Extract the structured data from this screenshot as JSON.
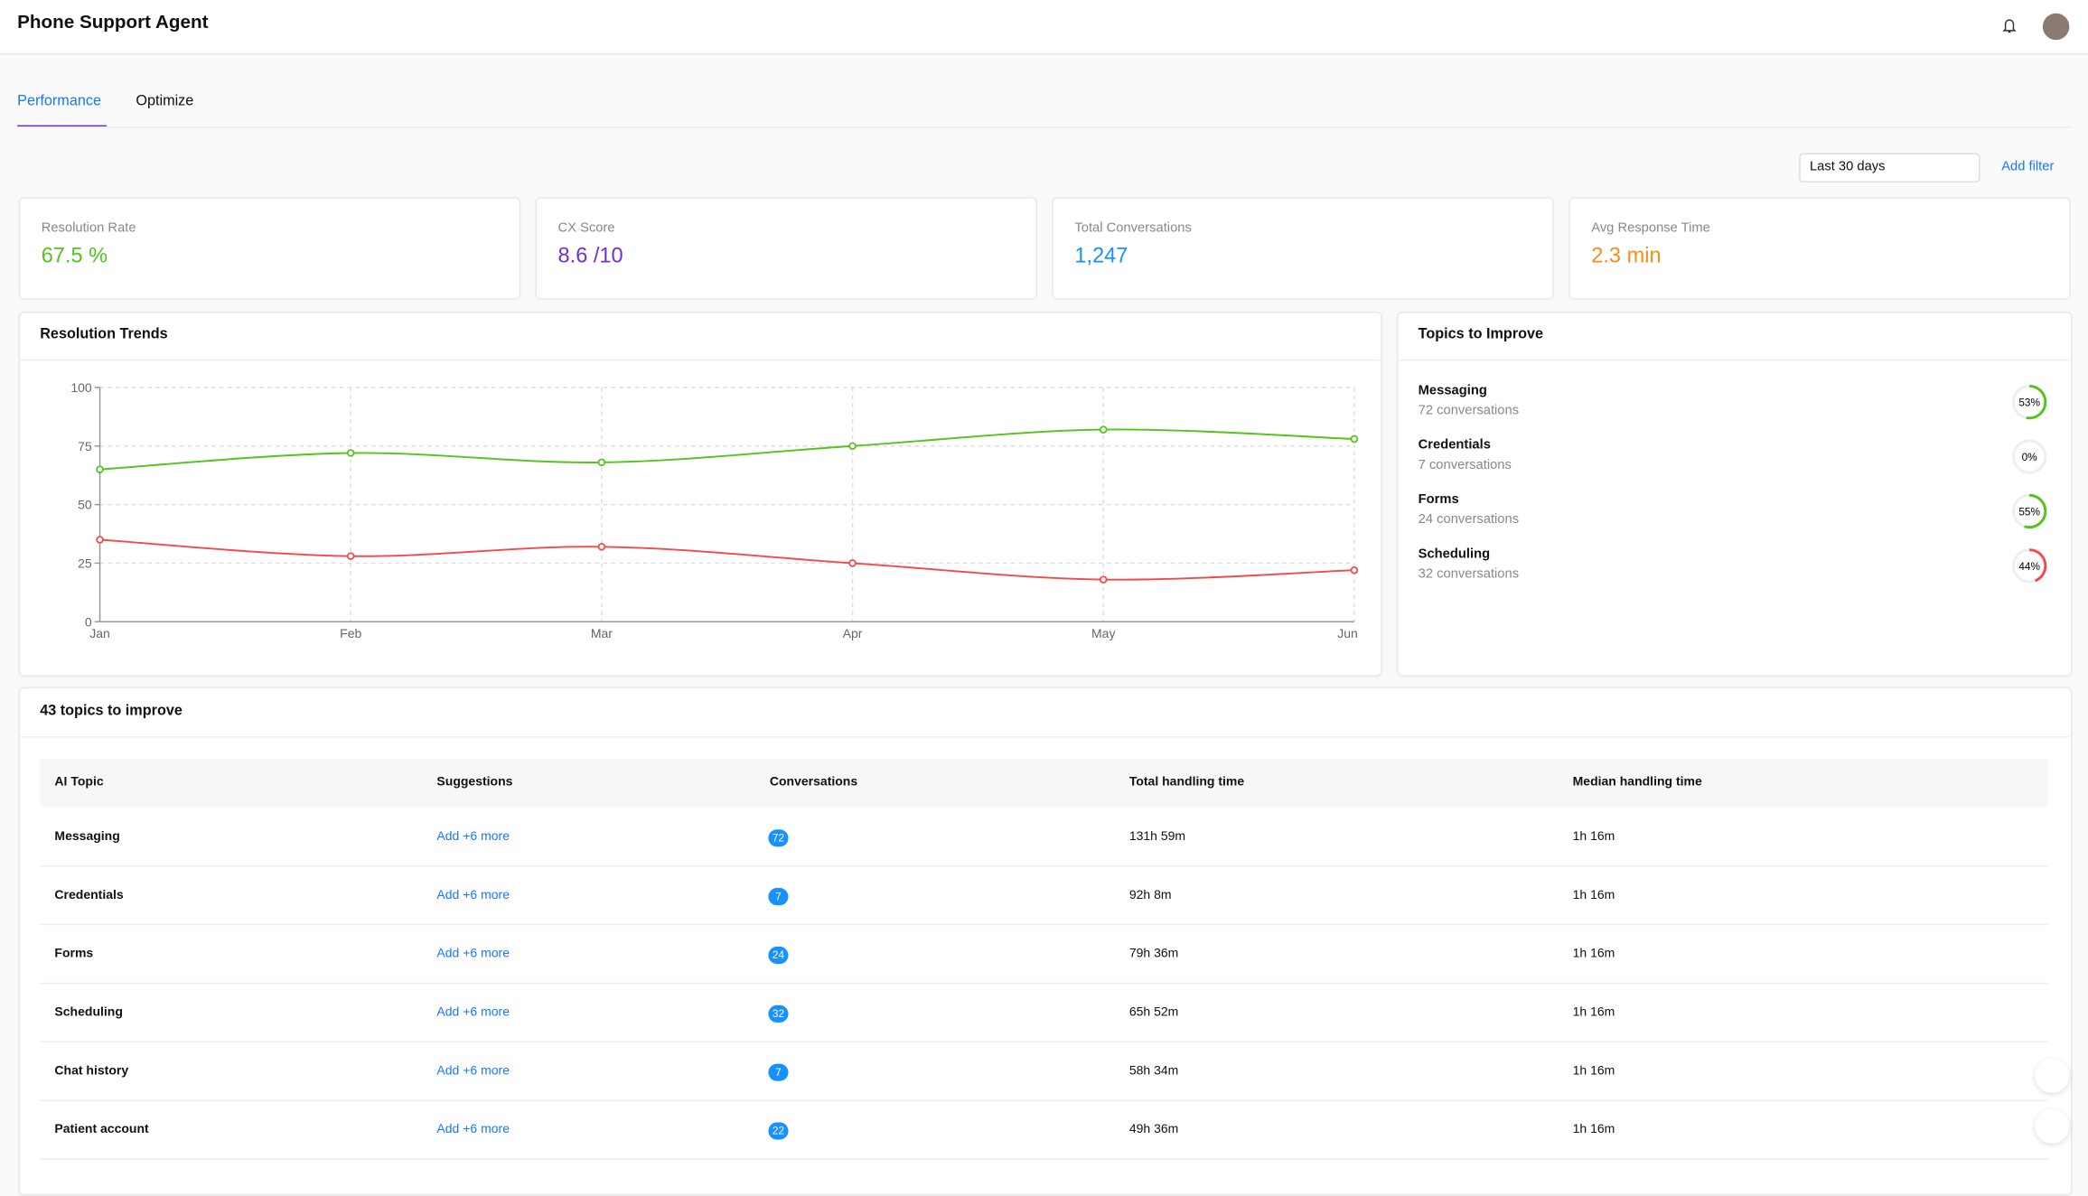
{
  "header": {
    "title": "Phone Support Agent"
  },
  "tabs": [
    "Performance",
    "Optimize"
  ],
  "filters": {
    "date_range": "Last 30 days",
    "add_filter": "Add filter"
  },
  "kpis": [
    {
      "label": "Resolution Rate",
      "value": "67.5 %",
      "color": "#52c41a"
    },
    {
      "label": "CX Score",
      "value": "8.6 /10",
      "color": "#722ed1"
    },
    {
      "label": "Total Conversations",
      "value": "1,247",
      "color": "#1890ff"
    },
    {
      "label": "Avg Response Time",
      "value": "2.3 min",
      "color": "#fa8c16"
    }
  ],
  "chart_data": {
    "type": "line",
    "title": "Resolution Trends",
    "categories": [
      "Jan",
      "Feb",
      "Mar",
      "Apr",
      "May",
      "Jun"
    ],
    "series": [
      {
        "color": "#52c41a",
        "values": [
          65,
          72,
          68,
          75,
          82,
          78
        ]
      },
      {
        "color": "#f5484a",
        "values": [
          35,
          28,
          32,
          25,
          18,
          22
        ]
      }
    ],
    "ylim": [
      0,
      100
    ],
    "yticks": [
      0,
      25,
      50,
      75,
      100
    ],
    "grid": true
  },
  "topics": {
    "title": "Topics to Improve",
    "items": [
      {
        "name": "Messaging",
        "conversations": "72 conversations",
        "percent": 53,
        "percent_label": "53%",
        "color": "#52c41a"
      },
      {
        "name": "Credentials",
        "conversations": "7 conversations",
        "percent": 0,
        "percent_label": "0%",
        "color": "#d9d9d9"
      },
      {
        "name": "Forms",
        "conversations": "24 conversations",
        "percent": 55,
        "percent_label": "55%",
        "color": "#52c41a"
      },
      {
        "name": "Scheduling",
        "conversations": "32 conversations",
        "percent": 44,
        "percent_label": "44%",
        "color": "#f5484a"
      }
    ]
  },
  "table": {
    "title": "43 topics to improve",
    "columns": [
      "AI Topic",
      "Suggestions",
      "Conversations",
      "Total handling time",
      "Median handling time"
    ],
    "rows": [
      [
        "Messaging",
        "Add +6 more",
        72,
        "131h 59m",
        "1h 16m"
      ],
      [
        "Credentials",
        "Add +6 more",
        7,
        "92h 8m",
        "1h 16m"
      ],
      [
        "Forms",
        "Add +6 more",
        24,
        "79h 36m",
        "1h 16m"
      ],
      [
        "Scheduling",
        "Add +6 more",
        32,
        "65h 52m",
        "1h 16m"
      ],
      [
        "Chat history",
        "Add +6 more",
        7,
        "58h 34m",
        "1h 16m"
      ],
      [
        "Patient account",
        "Add +6 more",
        22,
        "49h 36m",
        "1h 16m"
      ]
    ]
  }
}
